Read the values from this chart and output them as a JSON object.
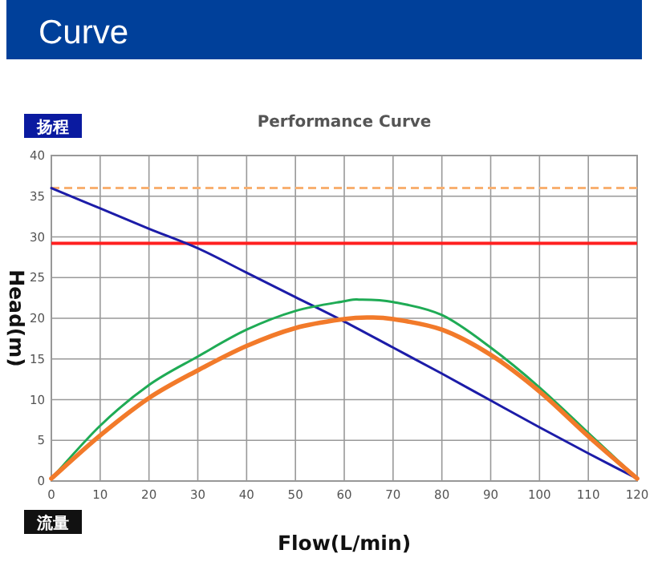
{
  "chart_data": {
    "type": "line",
    "title": "Performance Curve",
    "xlabel": "Flow(L/min)",
    "ylabel": "Head(m)",
    "annotations": [
      "Curve",
      "扬程",
      "流量"
    ],
    "xlim": [
      0,
      120
    ],
    "xticks": [
      0,
      10,
      20,
      30,
      40,
      50,
      60,
      70,
      80,
      90,
      100,
      110,
      120
    ],
    "ylim": [
      0,
      40
    ],
    "yticks": [
      0,
      5,
      10,
      15,
      20,
      25,
      30,
      35,
      40
    ],
    "grid": true,
    "marker": "none",
    "line_style": "solid",
    "series": [
      {
        "color": "#1c1ca8",
        "x": [
          0,
          10,
          20,
          30,
          40,
          50,
          60,
          70,
          80,
          90,
          100,
          110,
          120
        ],
        "values": [
          36,
          33.5,
          31,
          28.6,
          25.6,
          22.6,
          19.6,
          16.4,
          13.2,
          9.9,
          6.6,
          3.4,
          0.3
        ]
      },
      {
        "color": "#1fab55",
        "x": [
          0,
          10,
          20,
          30,
          40,
          50,
          60,
          63,
          70,
          80,
          90,
          100,
          110,
          120
        ],
        "values": [
          0.3,
          6.8,
          11.8,
          15.3,
          18.6,
          20.9,
          22.1,
          22.3,
          22,
          20.4,
          16.4,
          11.5,
          5.9,
          0.3
        ]
      },
      {
        "color": "#f27a2a",
        "x": [
          0,
          10,
          20,
          30,
          40,
          50,
          60,
          65,
          70,
          80,
          90,
          100,
          110,
          120
        ],
        "values": [
          0.3,
          5.6,
          10.2,
          13.6,
          16.6,
          18.8,
          19.9,
          20.1,
          19.9,
          18.6,
          15.5,
          11,
          5.5,
          0.3
        ]
      }
    ],
    "ref_lines": [
      {
        "axis": "y",
        "value": 29.2,
        "color": "#ff2020",
        "line_style": "solid"
      },
      {
        "axis": "y",
        "value": 36,
        "color": "#f8b070",
        "line_style": "dashed"
      }
    ]
  }
}
